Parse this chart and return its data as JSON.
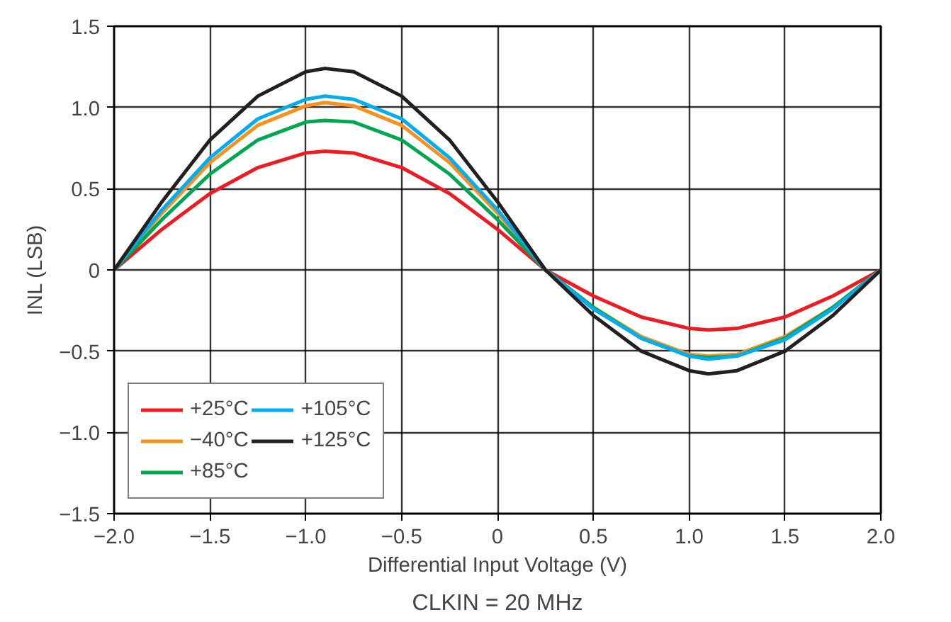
{
  "chart_data": {
    "type": "line",
    "xlabel": "Differential Input Voltage (V)",
    "ylabel": "INL (LSB)",
    "annotations": [
      "CLKIN = 20 MHz"
    ],
    "x": [
      -2,
      -1.75,
      -1.5,
      -1.25,
      -1,
      -0.9,
      -0.75,
      -0.5,
      -0.25,
      0,
      0.25,
      0.5,
      0.75,
      1,
      1.1,
      1.25,
      1.5,
      1.75,
      2
    ],
    "series": [
      {
        "name": "+25°C",
        "color": "#ed1c24",
        "values": [
          0,
          0.25,
          0.47,
          0.63,
          0.72,
          0.73,
          0.72,
          0.63,
          0.47,
          0.25,
          0,
          -0.16,
          -0.29,
          -0.36,
          -0.37,
          -0.36,
          -0.29,
          -0.16,
          0
        ]
      },
      {
        "name": "−40°C",
        "color": "#f7901e",
        "values": [
          0,
          0.35,
          0.66,
          0.89,
          1.01,
          1.03,
          1.01,
          0.89,
          0.66,
          0.35,
          0,
          -0.23,
          -0.41,
          -0.52,
          -0.53,
          -0.52,
          -0.41,
          -0.23,
          0
        ]
      },
      {
        "name": "+85°C",
        "color": "#00a651",
        "values": [
          0,
          0.31,
          0.59,
          0.8,
          0.91,
          0.92,
          0.91,
          0.8,
          0.59,
          0.31,
          0,
          -0.23,
          -0.42,
          -0.53,
          -0.54,
          -0.53,
          -0.42,
          -0.23,
          0
        ]
      },
      {
        "name": "+105°C",
        "color": "#00aeef",
        "values": [
          0,
          0.37,
          0.69,
          0.93,
          1.05,
          1.07,
          1.05,
          0.93,
          0.69,
          0.37,
          0,
          -0.24,
          -0.42,
          -0.53,
          -0.55,
          -0.53,
          -0.43,
          -0.24,
          0
        ]
      },
      {
        "name": "+125°C",
        "color": "#231f20",
        "values": [
          0,
          0.42,
          0.8,
          1.07,
          1.22,
          1.24,
          1.22,
          1.07,
          0.8,
          0.42,
          0,
          -0.28,
          -0.5,
          -0.62,
          -0.64,
          -0.62,
          -0.5,
          -0.28,
          0
        ]
      }
    ],
    "xlim": [
      -2,
      2
    ],
    "ylim": [
      -1.5,
      1.5
    ],
    "xticks": [
      {
        "value": -2,
        "label": "−2.0"
      },
      {
        "value": -1.5,
        "label": "−1.5"
      },
      {
        "value": -1,
        "label": "−1.0"
      },
      {
        "value": -0.5,
        "label": "−0.5"
      },
      0,
      {
        "value": 0.5,
        "label": "0.5"
      },
      {
        "value": 1,
        "label": "1.0"
      },
      {
        "value": 1.5,
        "label": "1.5"
      },
      {
        "value": 2,
        "label": "2.0"
      }
    ],
    "yticks": [
      {
        "value": -1.5,
        "label": "−1.5"
      },
      {
        "value": -1,
        "label": "−1.0"
      },
      {
        "value": -0.5,
        "label": "−0.5"
      },
      0,
      {
        "value": 0.5,
        "label": "0.5"
      },
      {
        "value": 1,
        "label": "1.0"
      },
      {
        "value": 1.5,
        "label": "1.5"
      }
    ],
    "grid": true,
    "legend": "bottom left",
    "line_style": "solid"
  }
}
